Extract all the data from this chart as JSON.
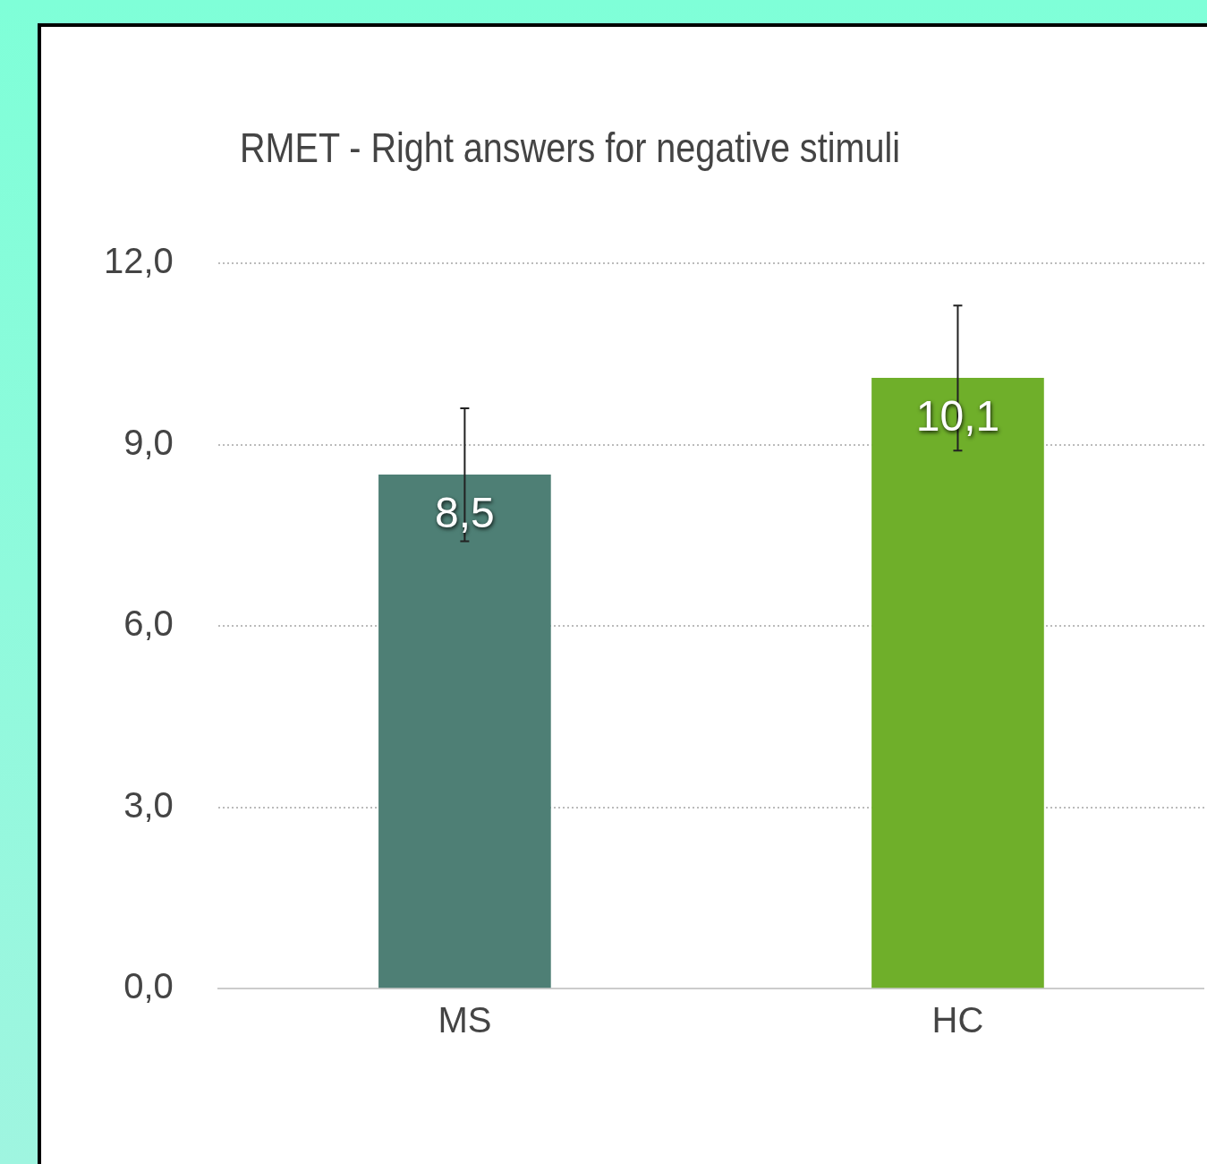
{
  "chart_data": {
    "type": "bar",
    "title": "RMET - Right answers for negative stimuli",
    "categories": [
      "MS",
      "HC"
    ],
    "values": [
      8.5,
      10.1
    ],
    "colors": [
      "#4e7f75",
      "#6faf2a"
    ],
    "errors": [
      [
        7.4,
        9.6
      ],
      [
        8.9,
        11.3
      ]
    ],
    "value_labels": [
      "8,5",
      "10,1"
    ],
    "ylim": [
      0,
      12
    ],
    "yticks": [
      {
        "value": 0,
        "label": "0,0"
      },
      {
        "value": 3,
        "label": "3,0"
      },
      {
        "value": 6,
        "label": "6,0"
      },
      {
        "value": 9,
        "label": "9,0"
      },
      {
        "value": 12,
        "label": "12,0"
      }
    ],
    "grid": "y",
    "legend": false
  }
}
